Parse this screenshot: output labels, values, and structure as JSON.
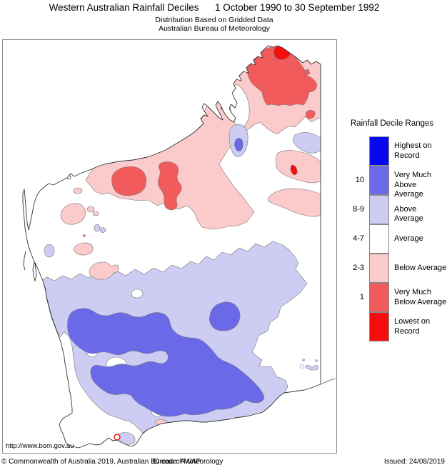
{
  "header": {
    "title_main": "Western Australian Rainfall Deciles",
    "title_period": "1 October 1990 to 30 September 1992",
    "subtitle1": "Distribution Based on Gridded Data",
    "subtitle2": "Australian Bureau of Meteorology"
  },
  "map": {
    "url": "http://www.bom.gov.au"
  },
  "legend": {
    "title": "Rainfall Decile Ranges",
    "entries": [
      {
        "decile": "",
        "lines": [
          "Highest on",
          "Record"
        ],
        "color": "#0808EE"
      },
      {
        "decile": "10",
        "lines": [
          "Very Much",
          "Above Average"
        ],
        "color": "#6A6AE8"
      },
      {
        "decile": "8-9",
        "lines": [
          "Above Average"
        ],
        "color": "#CDCDF4"
      },
      {
        "decile": "4-7",
        "lines": [
          "Average"
        ],
        "color": "#FFFFFF"
      },
      {
        "decile": "2-3",
        "lines": [
          "Below Average"
        ],
        "color": "#FBCACA"
      },
      {
        "decile": "1",
        "lines": [
          "Very Much",
          "Below Average"
        ],
        "color": "#F15B5B"
      },
      {
        "decile": "",
        "lines": [
          "Lowest on",
          "Record"
        ],
        "color": "#F60D0D"
      }
    ]
  },
  "footer": {
    "copyright": "© Commonwealth of Australia 2019, Australian Bureau of Meteorology",
    "id_code": "ID code: AWAP",
    "issued": "Issued: 24/08/2019"
  },
  "map_regions": [
    {
      "name": "southwest-above-average-main",
      "category": "above_average"
    },
    {
      "name": "wheatbelt-average-hole-1",
      "category": "average"
    },
    {
      "name": "wheatbelt-average-hole-2",
      "category": "average"
    },
    {
      "name": "murchison-average-hole",
      "category": "average"
    },
    {
      "name": "south-coast-average-hole",
      "category": "average"
    },
    {
      "name": "goldfields-average-hole",
      "category": "average"
    },
    {
      "name": "albany-coast-above-average-blob",
      "category": "above_average"
    },
    {
      "name": "central-south-very-much-above-main",
      "category": "very_much_above"
    },
    {
      "name": "kalgoorlie-very-much-above-blob",
      "category": "very_much_above"
    },
    {
      "name": "kimberley-pilbara-below-average",
      "category": "below_average"
    },
    {
      "name": "north-kimberley-very-much-below",
      "category": "very_much_below"
    },
    {
      "name": "kimberley-top-lowest-on-record",
      "category": "lowest"
    },
    {
      "name": "broome-coast-lowest-1",
      "category": "lowest"
    },
    {
      "name": "broome-coast-lowest-2",
      "category": "lowest"
    },
    {
      "name": "kimberley-island-very-much-below-1",
      "category": "very_much_below"
    },
    {
      "name": "kimberley-island-very-much-below-2",
      "category": "very_much_below"
    },
    {
      "name": "pilbara-west-very-much-below",
      "category": "very_much_below"
    },
    {
      "name": "pilbara-east-very-much-below",
      "category": "very_much_below"
    },
    {
      "name": "tanami-border-above-average",
      "category": "above_average"
    },
    {
      "name": "halls-creek-above-average",
      "category": "above_average"
    },
    {
      "name": "halls-creek-very-much-above-core",
      "category": "very_much_above"
    },
    {
      "name": "great-sandy-east-below-average-upper",
      "category": "below_average"
    },
    {
      "name": "great-sandy-east-lowest-sliver",
      "category": "lowest"
    },
    {
      "name": "great-sandy-east-below-average-lower",
      "category": "below_average"
    },
    {
      "name": "gascoyne-below-average-1",
      "category": "below_average"
    },
    {
      "name": "gascoyne-below-average-2a",
      "category": "below_average"
    },
    {
      "name": "gascoyne-below-average-2b",
      "category": "below_average"
    },
    {
      "name": "gascoyne-below-average-3",
      "category": "below_average"
    },
    {
      "name": "gascoyne-below-average-4",
      "category": "below_average"
    },
    {
      "name": "onslow-coast-below-average-dot",
      "category": "below_average"
    },
    {
      "name": "pilbara-tiny-very-much-below-dot",
      "category": "very_much_below"
    },
    {
      "name": "murchison-above-average-blob-1",
      "category": "above_average"
    },
    {
      "name": "murchison-above-average-blob-2",
      "category": "above_average"
    },
    {
      "name": "carnarvon-above-average-blob",
      "category": "above_average"
    },
    {
      "name": "esperance-coast-below-average-1",
      "category": "below_average"
    },
    {
      "name": "esperance-coast-below-average-2",
      "category": "below_average"
    },
    {
      "name": "south-coast-lowest-ring",
      "category": "lowest"
    },
    {
      "name": "border-above-average-crescent",
      "category": "above_average"
    },
    {
      "name": "border-above-average-ring",
      "category": "above_average"
    },
    {
      "name": "border-above-average-dot-1",
      "category": "above_average"
    },
    {
      "name": "border-above-average-dot-2",
      "category": "above_average"
    },
    {
      "name": "island-dampier",
      "category": "average"
    },
    {
      "name": "island-buccaneer",
      "category": "average"
    },
    {
      "name": "island-kimberley-1",
      "category": "average"
    },
    {
      "name": "island-kimberley-2",
      "category": "average"
    },
    {
      "name": "island-bonaparte",
      "category": "average"
    }
  ]
}
